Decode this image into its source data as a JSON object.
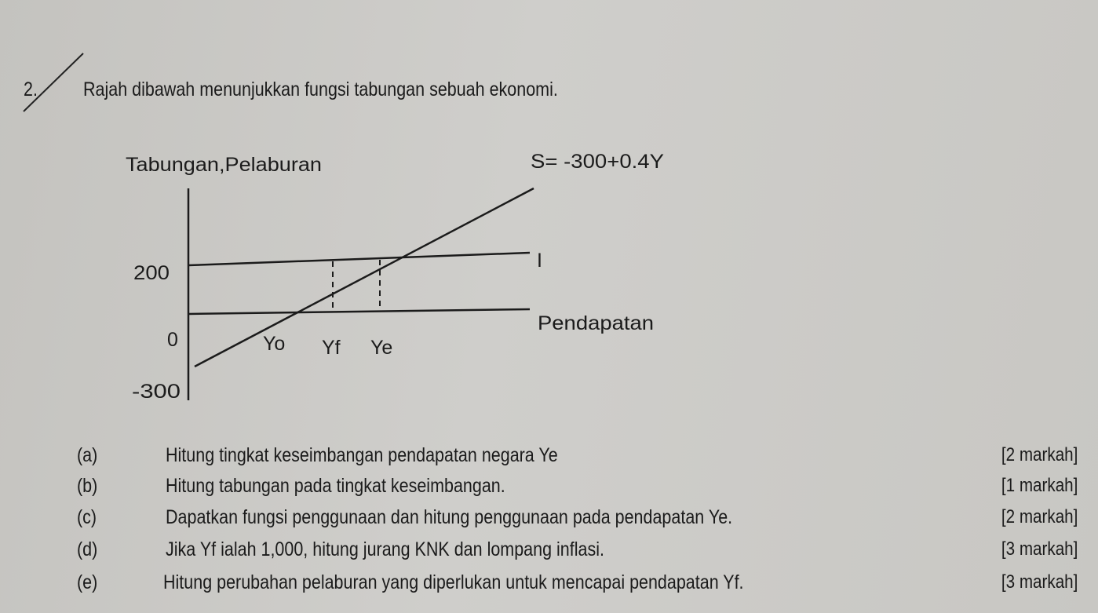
{
  "question": {
    "number": "2.",
    "intro": "Rajah dibawah menunjukkan fungsi tabungan sebuah ekonomi."
  },
  "diagram": {
    "y_axis_label": "Tabungan,Pelaburan",
    "x_axis_label": "Pendapatan",
    "saving_function": "S= -300+0.4Y",
    "investment_label": "I",
    "y_ticks": [
      "200",
      "0",
      "-300"
    ],
    "x_points": [
      "Yo",
      "Yf",
      "Ye"
    ]
  },
  "parts": [
    {
      "label": "(a)",
      "text": "Hitung tingkat keseimbangan pendapatan negara Ye",
      "marks": "[2 markah]"
    },
    {
      "label": "(b)",
      "text": "Hitung tabungan pada tingkat keseimbangan.",
      "marks": "[1 markah]"
    },
    {
      "label": "(c)",
      "text": "Dapatkan fungsi penggunaan dan hitung penggunaan pada pendapatan Ye.",
      "marks": "[2 markah]"
    },
    {
      "label": "(d)",
      "text": "Jika Yf ialah 1,000, hitung jurang KNK dan lompang inflasi.",
      "marks": "[3 markah]"
    },
    {
      "label": "(e)",
      "text": "Hitung  perubahan pelaburan  yang diperlukan untuk mencapai pendapatan Yf.",
      "marks": "[3 markah]"
    }
  ]
}
